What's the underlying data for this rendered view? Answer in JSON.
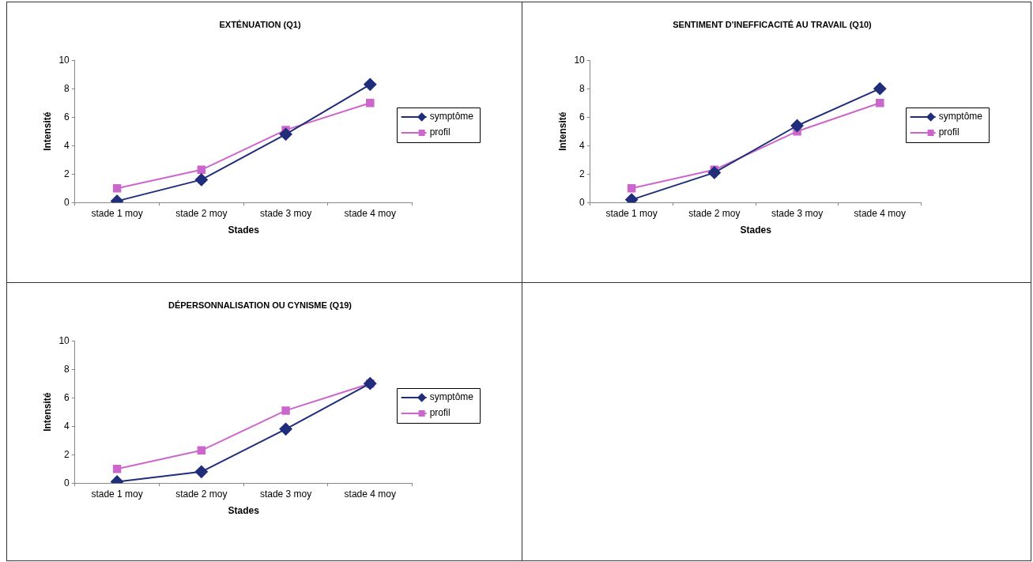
{
  "chart_data": [
    {
      "type": "line",
      "title": "EXTÉNUATION (Q1)",
      "xlabel": "Stades",
      "ylabel": "Intensité",
      "categories": [
        "stade 1 moy",
        "stade 2 moy",
        "stade 3 moy",
        "stade 4 moy"
      ],
      "ylim": [
        0,
        10
      ],
      "yticks": [
        0,
        2,
        4,
        6,
        8,
        10
      ],
      "grid": false,
      "legend": "right",
      "series": [
        {
          "name": "symptôme",
          "color": "#1f2d7a",
          "marker": "diamond",
          "values": [
            0.1,
            1.6,
            4.8,
            8.3
          ]
        },
        {
          "name": "profil",
          "color": "#cc66cc",
          "marker": "square",
          "values": [
            1.0,
            2.3,
            5.1,
            7.0
          ]
        }
      ]
    },
    {
      "type": "line",
      "title": "SENTIMENT D'INEFFICACITÉ AU TRAVAIL (Q10)",
      "xlabel": "Stades",
      "ylabel": "Intensité",
      "categories": [
        "stade 1 moy",
        "stade 2 moy",
        "stade 3 moy",
        "stade 4 moy"
      ],
      "ylim": [
        0,
        10
      ],
      "yticks": [
        0,
        2,
        4,
        6,
        8,
        10
      ],
      "grid": false,
      "legend": "right",
      "series": [
        {
          "name": "symptôme",
          "color": "#1f2d7a",
          "marker": "diamond",
          "values": [
            0.2,
            2.1,
            5.4,
            8.0
          ]
        },
        {
          "name": "profil",
          "color": "#cc66cc",
          "marker": "square",
          "values": [
            1.0,
            2.3,
            5.0,
            7.0
          ]
        }
      ]
    },
    {
      "type": "line",
      "title": "DÉPERSONNALISATION OU CYNISME (Q19)",
      "xlabel": "Stades",
      "ylabel": "Intensité",
      "categories": [
        "stade 1 moy",
        "stade 2 moy",
        "stade 3 moy",
        "stade 4 moy"
      ],
      "ylim": [
        0,
        10
      ],
      "yticks": [
        0,
        2,
        4,
        6,
        8,
        10
      ],
      "grid": false,
      "legend": "right",
      "series": [
        {
          "name": "symptôme",
          "color": "#1f2d7a",
          "marker": "diamond",
          "values": [
            0.1,
            0.8,
            3.8,
            7.0
          ]
        },
        {
          "name": "profil",
          "color": "#cc66cc",
          "marker": "square",
          "values": [
            1.0,
            2.3,
            5.1,
            7.0
          ]
        }
      ]
    }
  ]
}
